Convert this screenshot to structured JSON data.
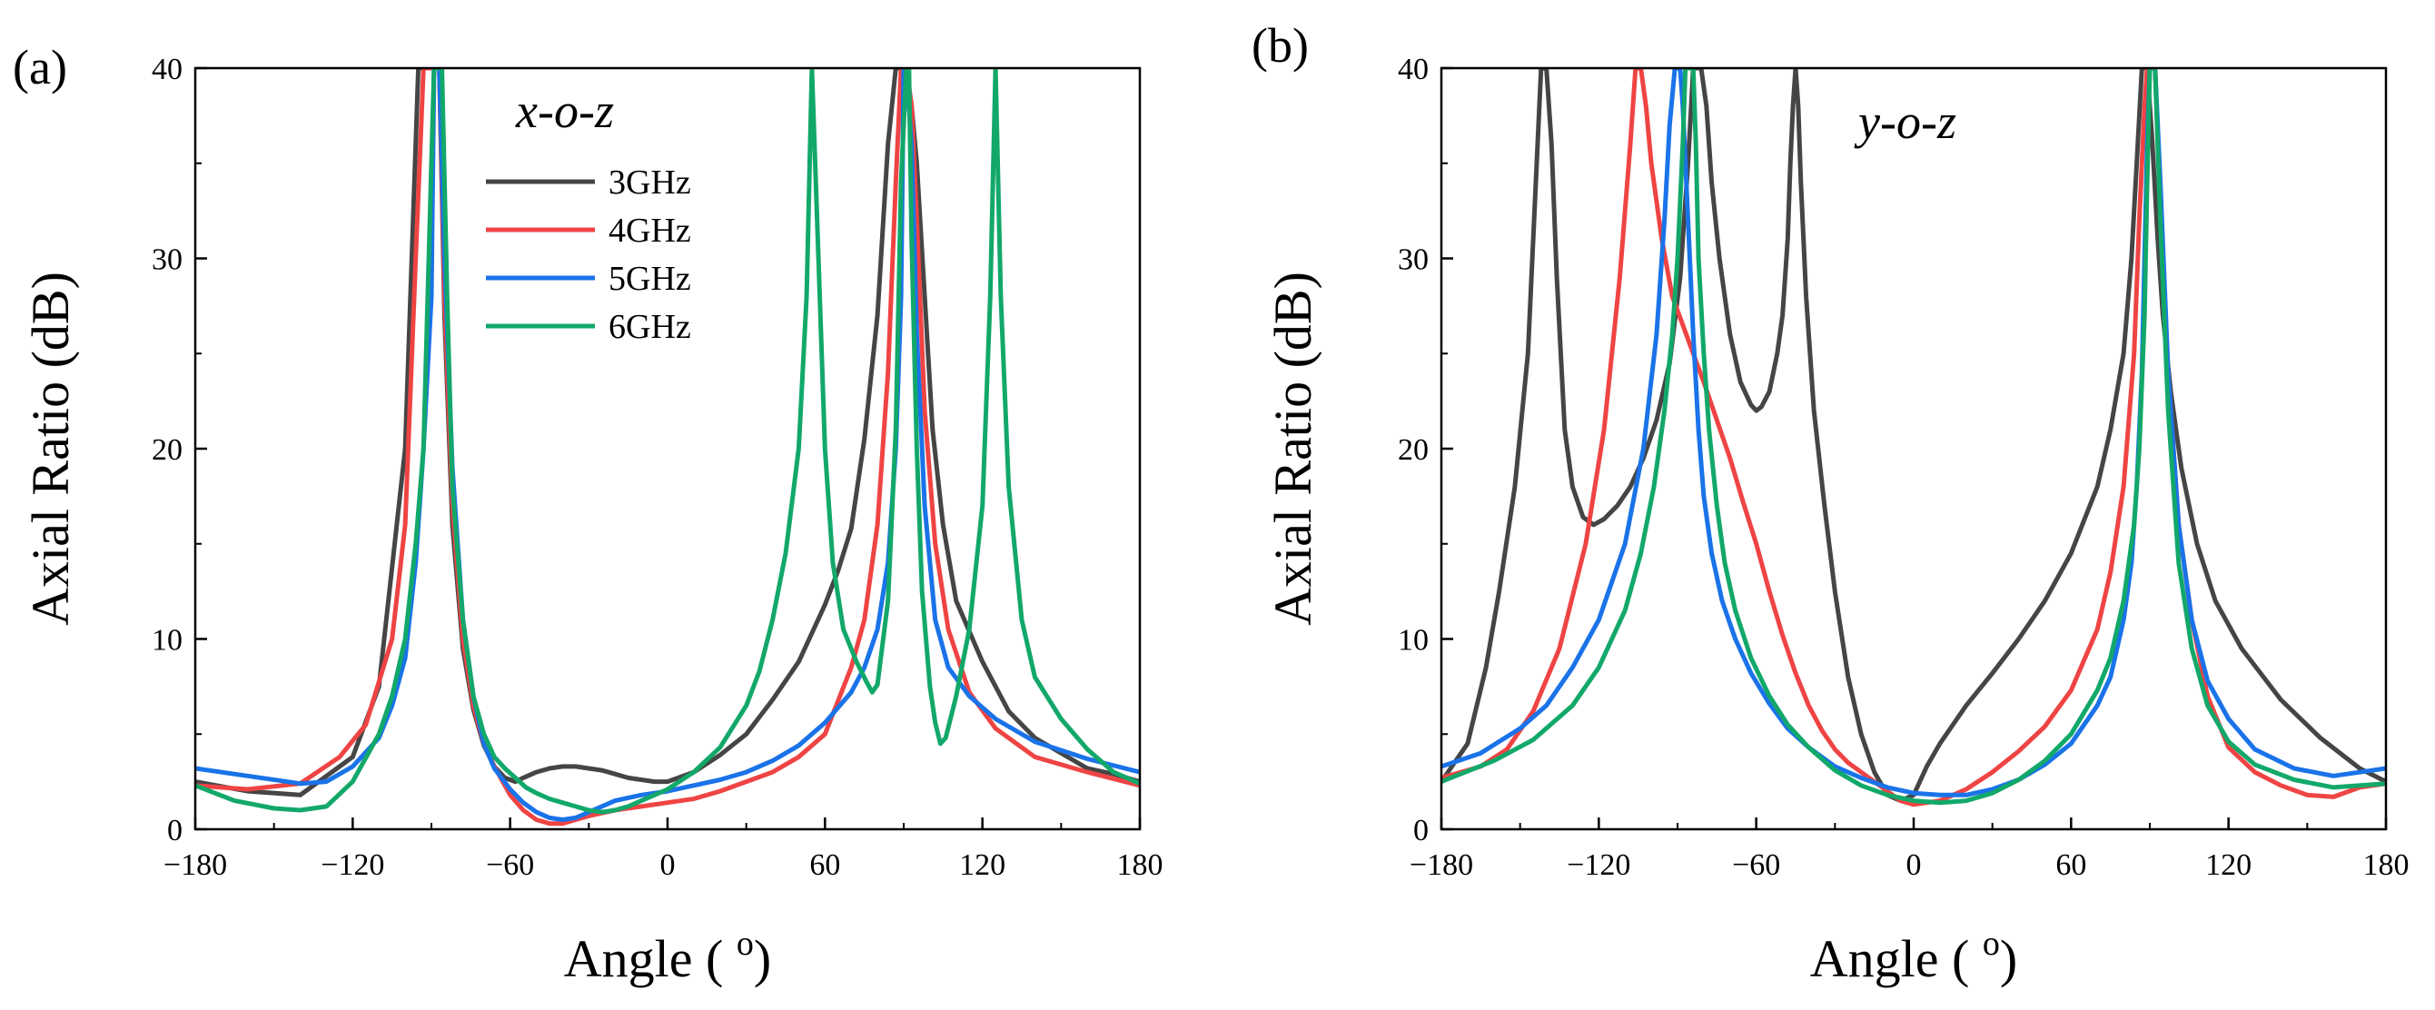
{
  "chart_data": [
    {
      "type": "line",
      "panel": "(a)",
      "plane": "x-o-z",
      "xlabel": "Angle ( ",
      "xlabel_sup": "o",
      "xlabel_close": ")",
      "ylabel": "Axial Ratio (dB)",
      "xlim": [
        -180,
        180
      ],
      "ylim": [
        0,
        40
      ],
      "xticks": [
        -180,
        -120,
        -60,
        0,
        60,
        120,
        180
      ],
      "xtick_labels": [
        "−180",
        "−120",
        "−60",
        "0",
        "60",
        "120",
        "180"
      ],
      "yticks": [
        0,
        10,
        20,
        30,
        40
      ],
      "ytick_labels": [
        "0",
        "10",
        "20",
        "30",
        "40"
      ],
      "legend": "top-center",
      "series": [
        {
          "name": "3GHz",
          "color": "#454545",
          "x": [
            -180,
            -160,
            -140,
            -120,
            -110,
            -100,
            -95,
            -93,
            -91,
            -89,
            -87,
            -85,
            -82,
            -78,
            -74,
            -70,
            -66,
            -62,
            -58,
            -55,
            -50,
            -45,
            -40,
            -35,
            -30,
            -25,
            -20,
            -15,
            -10,
            -5,
            0,
            10,
            20,
            30,
            40,
            50,
            60,
            65,
            70,
            75,
            80,
            84,
            87,
            89,
            91,
            93,
            95,
            98,
            101,
            105,
            110,
            120,
            130,
            140,
            150,
            160,
            170,
            180
          ],
          "y": [
            2.5,
            2.0,
            1.8,
            3.8,
            7.5,
            20,
            40,
            40,
            40,
            40,
            40,
            27,
            16,
            9.5,
            6.3,
            4.4,
            3.3,
            2.7,
            2.5,
            2.7,
            3.0,
            3.2,
            3.3,
            3.3,
            3.2,
            3.1,
            2.9,
            2.7,
            2.6,
            2.5,
            2.5,
            3.0,
            3.9,
            5.0,
            6.8,
            8.8,
            11.8,
            13.6,
            15.8,
            20.5,
            27,
            36,
            40,
            40,
            40,
            38,
            35,
            28,
            21,
            16,
            12,
            8.8,
            6.2,
            4.8,
            4.0,
            3.2,
            2.9,
            2.5
          ]
        },
        {
          "name": "4GHz",
          "color": "#ef4444",
          "x": [
            -180,
            -160,
            -140,
            -125,
            -115,
            -105,
            -100,
            -96,
            -93,
            -91,
            -89,
            -87,
            -85,
            -82,
            -78,
            -74,
            -70,
            -66,
            -60,
            -55,
            -50,
            -45,
            -40,
            -35,
            -30,
            -20,
            -10,
            0,
            10,
            20,
            30,
            40,
            50,
            60,
            70,
            75,
            80,
            84,
            87,
            89,
            91,
            93,
            95,
            98,
            102,
            107,
            115,
            125,
            140,
            160,
            180
          ],
          "y": [
            2.3,
            2.1,
            2.4,
            3.8,
            5.5,
            10,
            16,
            30,
            40,
            40,
            40,
            40,
            28,
            17,
            10,
            6.5,
            4.5,
            3.3,
            1.8,
            1.0,
            0.5,
            0.3,
            0.3,
            0.5,
            0.7,
            1.0,
            1.2,
            1.4,
            1.6,
            2.0,
            2.5,
            3.0,
            3.8,
            5.0,
            8.5,
            11,
            16,
            24,
            34,
            40,
            40,
            38,
            32,
            22,
            15,
            10.5,
            7.2,
            5.3,
            3.8,
            3.0,
            2.3
          ]
        },
        {
          "name": "5GHz",
          "color": "#1a73e8",
          "x": [
            -180,
            -160,
            -140,
            -130,
            -120,
            -110,
            -105,
            -100,
            -96,
            -93,
            -90,
            -89,
            -88,
            -87,
            -85,
            -82,
            -78,
            -74,
            -70,
            -66,
            -60,
            -55,
            -50,
            -45,
            -40,
            -35,
            -30,
            -20,
            -10,
            0,
            10,
            20,
            30,
            40,
            50,
            60,
            70,
            75,
            80,
            84,
            87,
            89,
            90,
            91,
            93,
            95,
            98,
            102,
            107,
            115,
            125,
            140,
            160,
            180
          ],
          "y": [
            3.2,
            2.8,
            2.4,
            2.5,
            3.3,
            4.8,
            6.5,
            9,
            14,
            20,
            28,
            40,
            40,
            40,
            30,
            19,
            11,
            7,
            4.5,
            3.2,
            2.1,
            1.4,
            0.9,
            0.6,
            0.5,
            0.6,
            0.9,
            1.5,
            1.8,
            2.0,
            2.3,
            2.6,
            3.0,
            3.6,
            4.4,
            5.6,
            7.2,
            8.5,
            10.5,
            14,
            20,
            28,
            40,
            40,
            36,
            26,
            17,
            11,
            8.5,
            7.0,
            5.8,
            4.6,
            3.7,
            3.0
          ]
        },
        {
          "name": "6GHz",
          "color": "#12a86a",
          "x": [
            -180,
            -165,
            -150,
            -140,
            -130,
            -120,
            -110,
            -105,
            -100,
            -96,
            -93,
            -91,
            -89,
            -88,
            -86,
            -84,
            -82,
            -78,
            -74,
            -70,
            -66,
            -62,
            -58,
            -54,
            -50,
            -45,
            -40,
            -35,
            -30,
            -25,
            -20,
            -15,
            -10,
            -5,
            0,
            10,
            20,
            30,
            35,
            40,
            45,
            50,
            53,
            55,
            57,
            60,
            63,
            67,
            72,
            76,
            78,
            80,
            84,
            87,
            89,
            91,
            92,
            93,
            95,
            97,
            100,
            102,
            104,
            106,
            110,
            115,
            120,
            123,
            125,
            127,
            130,
            135,
            140,
            150,
            160,
            170,
            180
          ],
          "y": [
            2.3,
            1.5,
            1.1,
            1.0,
            1.2,
            2.5,
            5,
            7,
            10,
            15,
            20,
            30,
            40,
            40,
            40,
            28,
            18,
            11,
            7,
            5,
            3.8,
            3.2,
            2.7,
            2.2,
            1.9,
            1.6,
            1.4,
            1.2,
            1.0,
            0.9,
            1.0,
            1.2,
            1.5,
            1.8,
            2.1,
            3.0,
            4.3,
            6.5,
            8.3,
            11,
            14.5,
            20,
            28,
            40,
            32,
            20,
            14,
            10.5,
            8.8,
            7.7,
            7.2,
            7.6,
            12,
            21,
            34,
            40,
            40,
            31,
            20,
            12.5,
            7.5,
            5.6,
            4.5,
            4.8,
            7,
            10.5,
            17,
            28,
            40,
            28,
            18,
            11,
            8,
            5.8,
            4.2,
            3.0,
            2.4
          ]
        }
      ]
    },
    {
      "type": "line",
      "panel": "(b)",
      "plane": "y-o-z",
      "xlabel": "Angle ( ",
      "xlabel_sup": "o",
      "xlabel_close": ")",
      "ylabel": "Axial Ratio (dB)",
      "xlim": [
        -180,
        180
      ],
      "ylim": [
        0,
        40
      ],
      "xticks": [
        -180,
        -120,
        -60,
        0,
        60,
        120,
        180
      ],
      "xtick_labels": [
        "−180",
        "−120",
        "−60",
        "0",
        "60",
        "120",
        "180"
      ],
      "yticks": [
        0,
        10,
        20,
        30,
        40
      ],
      "ytick_labels": [
        "0",
        "10",
        "20",
        "30",
        "40"
      ],
      "legend": "none",
      "series": [
        {
          "name": "3GHz",
          "color": "#454545",
          "x": [
            -180,
            -170,
            -163,
            -158,
            -152,
            -147,
            -144,
            -142,
            -140,
            -138,
            -136,
            -133,
            -130,
            -126,
            -122,
            -118,
            -113,
            -108,
            -103,
            -98,
            -93,
            -89,
            -86,
            -84,
            -83,
            -81,
            -79,
            -77,
            -74,
            -70,
            -66,
            -62,
            -60,
            -58,
            -55,
            -52,
            -50,
            -48,
            -47,
            -46,
            -45,
            -44,
            -43,
            -41,
            -38,
            -34,
            -30,
            -25,
            -20,
            -15,
            -10,
            -5,
            0,
            5,
            10,
            20,
            30,
            40,
            50,
            60,
            70,
            75,
            80,
            83,
            85,
            87,
            88,
            89,
            91,
            93,
            95,
            98,
            102,
            108,
            115,
            125,
            140,
            155,
            170,
            180
          ],
          "y": [
            2.5,
            4.5,
            8.5,
            12.5,
            18,
            25,
            34,
            40,
            40,
            36,
            29,
            21,
            18,
            16.4,
            16,
            16.3,
            17,
            18,
            19.5,
            21.5,
            24.5,
            29,
            35,
            40,
            40,
            40,
            38,
            34,
            30,
            26,
            23.5,
            22.3,
            22,
            22.2,
            23,
            25,
            27,
            31,
            35,
            38,
            40,
            38,
            34,
            28,
            22,
            17,
            12.5,
            8,
            5,
            3,
            1.8,
            1.5,
            1.8,
            3.3,
            4.5,
            6.5,
            8.2,
            10,
            12,
            14.5,
            18,
            21,
            25,
            30,
            35,
            40,
            40,
            40,
            36,
            31,
            27,
            23,
            19,
            15,
            12,
            9.5,
            6.8,
            4.8,
            3.2,
            2.5
          ]
        },
        {
          "name": "4GHz",
          "color": "#ef4444",
          "x": [
            -180,
            -165,
            -155,
            -145,
            -135,
            -125,
            -118,
            -112,
            -108,
            -106,
            -104,
            -102,
            -100,
            -96,
            -92,
            -88,
            -84,
            -80,
            -75,
            -70,
            -65,
            -60,
            -55,
            -50,
            -45,
            -40,
            -35,
            -30,
            -25,
            -20,
            -15,
            -10,
            -5,
            0,
            10,
            20,
            30,
            40,
            50,
            60,
            70,
            75,
            80,
            84,
            86,
            88,
            89,
            90,
            91,
            92,
            94,
            97,
            101,
            106,
            112,
            120,
            130,
            140,
            150,
            160,
            170,
            180
          ],
          "y": [
            2.7,
            3.3,
            4.2,
            6.2,
            9.5,
            15,
            21,
            29,
            36,
            40,
            40,
            38,
            35,
            31,
            28,
            26.5,
            25,
            23.5,
            21.5,
            19.5,
            17.2,
            15,
            12.5,
            10.2,
            8.2,
            6.5,
            5.2,
            4.2,
            3.5,
            3.0,
            2.5,
            2.0,
            1.5,
            1.3,
            1.5,
            2.1,
            3.0,
            4.1,
            5.4,
            7.3,
            10.5,
            13.5,
            18,
            25,
            32,
            38,
            40,
            40,
            40,
            40,
            33,
            24,
            16,
            11,
            7,
            4.3,
            3.0,
            2.3,
            1.8,
            1.7,
            2.2,
            2.4
          ]
        },
        {
          "name": "5GHz",
          "color": "#1a73e8",
          "x": [
            -180,
            -165,
            -150,
            -140,
            -130,
            -120,
            -110,
            -103,
            -98,
            -95,
            -93,
            -91,
            -90,
            -89,
            -88,
            -86,
            -84,
            -82,
            -80,
            -77,
            -73,
            -68,
            -62,
            -55,
            -48,
            -40,
            -30,
            -20,
            -10,
            0,
            10,
            20,
            30,
            40,
            50,
            60,
            70,
            75,
            80,
            83,
            85,
            87,
            88,
            89,
            90,
            91,
            92,
            94,
            97,
            101,
            106,
            112,
            120,
            130,
            145,
            160,
            180
          ],
          "y": [
            3.3,
            4.0,
            5.3,
            6.5,
            8.5,
            11,
            15,
            20,
            26,
            32,
            37,
            40,
            40,
            40,
            38,
            32,
            26,
            21,
            17.5,
            14.5,
            12,
            10,
            8.2,
            6.6,
            5.3,
            4.3,
            3.3,
            2.7,
            2.2,
            1.9,
            1.8,
            1.8,
            2.1,
            2.6,
            3.4,
            4.5,
            6.5,
            8,
            11,
            14,
            18,
            24,
            30,
            36,
            40,
            40,
            40,
            34,
            24,
            16,
            11,
            7.8,
            5.8,
            4.2,
            3.2,
            2.8,
            3.2
          ]
        },
        {
          "name": "6GHz",
          "color": "#12a86a",
          "x": [
            -180,
            -160,
            -145,
            -130,
            -120,
            -110,
            -104,
            -99,
            -95,
            -92,
            -90,
            -88,
            -87,
            -86,
            -85,
            -84,
            -83,
            -82,
            -80,
            -78,
            -75,
            -72,
            -68,
            -62,
            -55,
            -48,
            -40,
            -30,
            -20,
            -10,
            0,
            10,
            20,
            30,
            40,
            50,
            60,
            70,
            75,
            80,
            84,
            86,
            88,
            89,
            90,
            91,
            92,
            94,
            97,
            101,
            106,
            112,
            120,
            130,
            145,
            160,
            180
          ],
          "y": [
            2.5,
            3.6,
            4.7,
            6.5,
            8.5,
            11.5,
            14.5,
            18,
            22,
            26,
            30,
            36,
            40,
            40,
            40,
            40,
            36,
            30,
            25,
            21,
            17,
            14,
            11.5,
            9,
            7,
            5.5,
            4.3,
            3.1,
            2.3,
            1.8,
            1.5,
            1.4,
            1.5,
            1.9,
            2.6,
            3.6,
            5,
            7.3,
            9,
            12,
            16,
            20,
            27,
            34,
            40,
            40,
            40,
            32,
            22,
            14,
            9.5,
            6.5,
            4.6,
            3.4,
            2.6,
            2.2,
            2.4
          ]
        }
      ]
    }
  ]
}
